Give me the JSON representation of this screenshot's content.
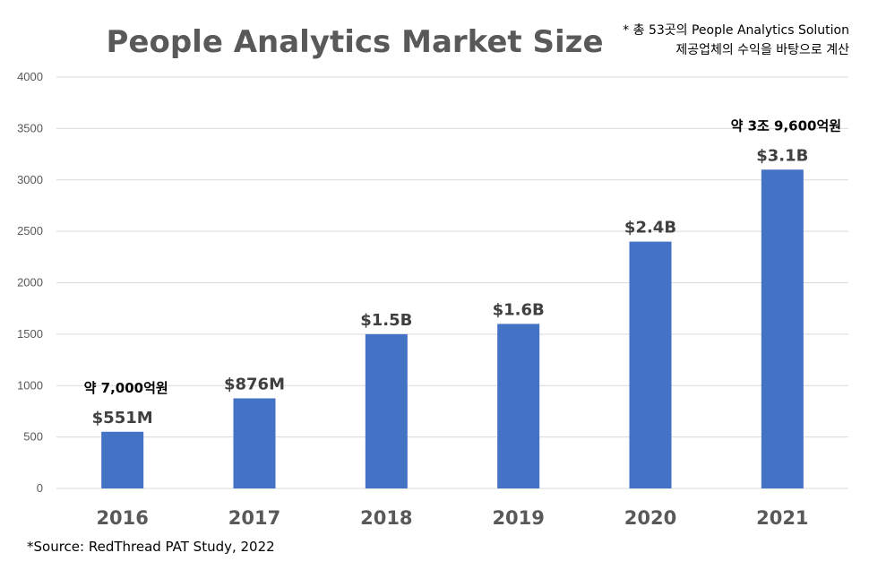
{
  "chart_data": {
    "type": "bar",
    "title": "People Analytics Market Size",
    "note_lines": [
      "* 총 53곳의 People Analytics Solution",
      "제공업체의 수익을 바탕으로 계산"
    ],
    "categories": [
      "2016",
      "2017",
      "2018",
      "2019",
      "2020",
      "2021"
    ],
    "values": [
      551,
      876,
      1500,
      1600,
      2400,
      3100
    ],
    "data_labels": [
      "$551M",
      "$876M",
      "$1.5B",
      "$1.6B",
      "$2.4B",
      "$3.1B"
    ],
    "annotations": [
      {
        "category_index": 0,
        "text": "약 7,000억원"
      },
      {
        "category_index": 5,
        "text": "약 3조 9,600억원"
      }
    ],
    "y_ticks": [
      0,
      500,
      1000,
      1500,
      2000,
      2500,
      3000,
      3500,
      4000
    ],
    "ylim": [
      0,
      4000
    ],
    "grid": true,
    "bar_color": "#4472c4",
    "xlabel": "",
    "ylabel": "",
    "source": "*Source: RedThread PAT Study, 2022"
  }
}
